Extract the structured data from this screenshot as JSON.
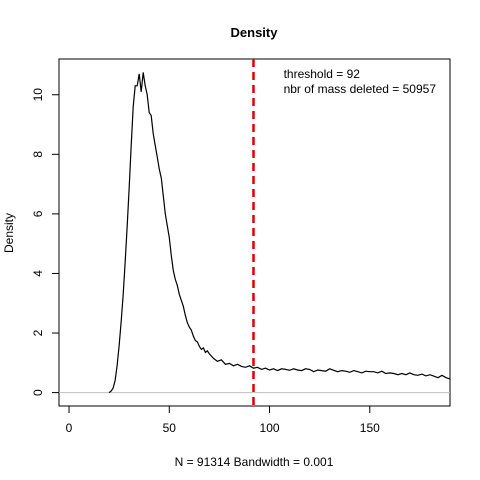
{
  "chart_data": {
    "type": "line",
    "title": "Density",
    "xlabel": "N = 91314   Bandwidth = 0.001",
    "ylabel": "Density",
    "xlim": [
      -5,
      190
    ],
    "ylim": [
      -0.45,
      11.2
    ],
    "xticks": [
      0,
      50,
      100,
      150
    ],
    "yticks": [
      0,
      2,
      4,
      6,
      8,
      10
    ],
    "grid": false,
    "zero_line": true,
    "colors": {
      "curve": "#000000",
      "threshold": "#dd0000",
      "zero_line": "#bebebe"
    },
    "threshold": {
      "x": 92,
      "style": "dashed"
    },
    "annotations": [
      {
        "text": "threshold =  92",
        "x": 107,
        "y": 10.7
      },
      {
        "text": "nbr of mass deleted = 50957",
        "x": 107,
        "y": 10.2
      }
    ],
    "series": [
      {
        "x": [
          20,
          21,
          22,
          23,
          24,
          25,
          26,
          27,
          28,
          29,
          30,
          31,
          32,
          33,
          34,
          35,
          36,
          37,
          38,
          39,
          40,
          41,
          42,
          43,
          44,
          45,
          46,
          47,
          48,
          49,
          50,
          51,
          52,
          53,
          54,
          55,
          56,
          57,
          58,
          59,
          60,
          61,
          62,
          63,
          64,
          65,
          66,
          67,
          68,
          69,
          70,
          72,
          74,
          76,
          78,
          80,
          82,
          84,
          86,
          88,
          90,
          92,
          94,
          96,
          98,
          100,
          102,
          104,
          106,
          108,
          110,
          112,
          114,
          116,
          118,
          120,
          122,
          124,
          126,
          128,
          130,
          132,
          134,
          136,
          138,
          140,
          142,
          144,
          146,
          148,
          150,
          152,
          154,
          156,
          158,
          160,
          162,
          164,
          166,
          168,
          170,
          172,
          174,
          176,
          178,
          180,
          182,
          184,
          186,
          188,
          190
        ],
        "y": [
          0,
          0.05,
          0.15,
          0.4,
          0.9,
          1.6,
          2.4,
          3.3,
          4.4,
          5.6,
          6.9,
          8.3,
          9.6,
          10.3,
          10.3,
          10.7,
          10.1,
          10.75,
          10.3,
          10.0,
          9.4,
          9.3,
          8.7,
          8.3,
          7.9,
          7.5,
          7.2,
          6.6,
          6.0,
          5.6,
          5.2,
          4.6,
          4.1,
          3.8,
          3.6,
          3.3,
          3.1,
          2.9,
          2.6,
          2.35,
          2.2,
          2.1,
          1.9,
          1.75,
          1.7,
          1.55,
          1.45,
          1.5,
          1.35,
          1.4,
          1.3,
          1.15,
          1.05,
          1.1,
          0.95,
          0.98,
          0.9,
          0.95,
          0.88,
          0.85,
          0.9,
          0.82,
          0.85,
          0.78,
          0.82,
          0.76,
          0.8,
          0.74,
          0.8,
          0.78,
          0.75,
          0.8,
          0.76,
          0.74,
          0.8,
          0.78,
          0.7,
          0.76,
          0.74,
          0.72,
          0.8,
          0.75,
          0.7,
          0.74,
          0.72,
          0.68,
          0.74,
          0.7,
          0.66,
          0.72,
          0.7,
          0.7,
          0.66,
          0.72,
          0.64,
          0.66,
          0.64,
          0.6,
          0.64,
          0.6,
          0.66,
          0.6,
          0.58,
          0.62,
          0.56,
          0.6,
          0.55,
          0.5,
          0.58,
          0.5,
          0.46
        ]
      }
    ]
  }
}
